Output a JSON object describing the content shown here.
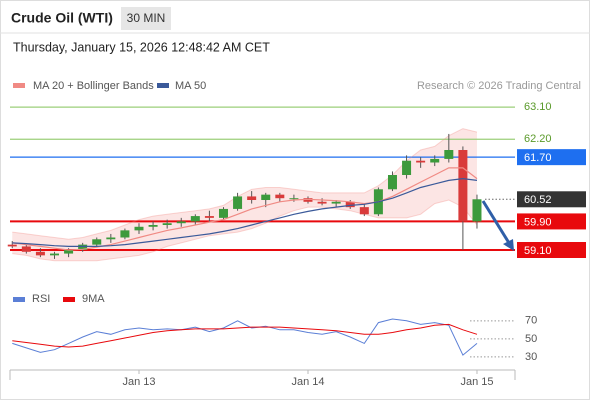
{
  "header": {
    "title": "Crude Oil (WTI)",
    "timeframe": "30 MIN",
    "datetime": "Thursday, January 15, 2026 12:48:42 AM CET",
    "credit": "Research © 2026 Trading Central"
  },
  "chart_data": [
    {
      "type": "candlestick",
      "x": [
        0,
        1,
        2,
        3,
        4,
        5,
        6,
        7,
        8,
        9,
        10,
        11,
        12,
        13,
        14,
        15,
        16,
        17,
        18,
        19,
        20,
        21,
        22,
        23,
        24,
        25,
        26,
        27,
        28,
        29,
        30,
        31,
        32,
        33
      ],
      "open": [
        59.25,
        59.2,
        59.05,
        58.95,
        59.0,
        59.1,
        59.25,
        59.4,
        59.45,
        59.65,
        59.75,
        59.8,
        59.85,
        59.9,
        60.05,
        60.0,
        60.25,
        60.6,
        60.5,
        60.65,
        60.55,
        60.55,
        60.45,
        60.4,
        60.45,
        60.3,
        60.1,
        60.8,
        61.2,
        61.6,
        61.55,
        61.65,
        61.9,
        59.9
      ],
      "high": [
        59.35,
        59.25,
        59.15,
        59.05,
        59.15,
        59.3,
        59.45,
        59.55,
        59.7,
        59.85,
        59.9,
        59.95,
        60.0,
        60.1,
        60.2,
        60.3,
        60.7,
        60.75,
        60.7,
        60.7,
        60.65,
        60.6,
        60.55,
        60.5,
        60.5,
        60.4,
        60.85,
        61.3,
        61.75,
        61.7,
        61.75,
        62.35,
        62.0,
        60.65
      ],
      "low": [
        59.15,
        59.0,
        58.9,
        58.85,
        58.9,
        59.05,
        59.2,
        59.3,
        59.4,
        59.55,
        59.65,
        59.7,
        59.75,
        59.8,
        59.9,
        59.95,
        60.2,
        60.4,
        60.3,
        60.45,
        60.45,
        60.4,
        60.35,
        60.3,
        60.25,
        60.05,
        60.05,
        60.75,
        61.1,
        61.4,
        61.45,
        61.55,
        59.1,
        59.7
      ],
      "close": [
        59.2,
        59.05,
        58.95,
        59.0,
        59.1,
        59.25,
        59.4,
        59.45,
        59.65,
        59.75,
        59.8,
        59.85,
        59.9,
        60.05,
        60.0,
        60.25,
        60.6,
        60.5,
        60.65,
        60.55,
        60.55,
        60.45,
        60.4,
        60.45,
        60.3,
        60.1,
        60.8,
        61.2,
        61.6,
        61.55,
        61.65,
        61.9,
        59.9,
        60.52
      ],
      "up_color": "#3c9a3c",
      "down_color": "#d93a3a",
      "series": [
        {
          "name": "MA 20 + Bollinger Bands",
          "color": "#f08a84",
          "values": [
            59.3,
            59.25,
            59.2,
            59.15,
            59.1,
            59.12,
            59.18,
            59.25,
            59.35,
            59.45,
            59.55,
            59.65,
            59.72,
            59.8,
            59.88,
            59.95,
            60.1,
            60.25,
            60.35,
            60.45,
            60.5,
            60.52,
            60.5,
            60.48,
            60.45,
            60.4,
            60.45,
            60.6,
            60.8,
            61.0,
            61.2,
            61.4,
            61.4,
            61.1
          ],
          "upper": [
            59.6,
            59.55,
            59.5,
            59.45,
            59.4,
            59.45,
            59.55,
            59.65,
            59.8,
            59.95,
            60.05,
            60.1,
            60.15,
            60.2,
            60.25,
            60.35,
            60.6,
            60.8,
            60.85,
            60.85,
            60.8,
            60.75,
            60.7,
            60.7,
            60.7,
            60.7,
            60.9,
            61.2,
            61.6,
            61.9,
            62.0,
            62.3,
            62.5,
            62.4
          ],
          "lower": [
            59.0,
            58.95,
            58.85,
            58.8,
            58.8,
            58.8,
            58.8,
            58.85,
            58.9,
            58.95,
            59.05,
            59.2,
            59.3,
            59.4,
            59.5,
            59.55,
            59.6,
            59.7,
            59.85,
            60.05,
            60.2,
            60.3,
            60.3,
            60.25,
            60.2,
            60.1,
            60.0,
            60.0,
            60.0,
            60.1,
            60.4,
            60.5,
            60.3,
            59.8
          ]
        },
        {
          "name": "MA 50",
          "color": "#3b5a9a",
          "values": [
            59.3,
            59.28,
            59.25,
            59.22,
            59.2,
            59.2,
            59.2,
            59.22,
            59.25,
            59.3,
            59.35,
            59.4,
            59.45,
            59.5,
            59.55,
            59.62,
            59.7,
            59.8,
            59.9,
            60.0,
            60.1,
            60.18,
            60.25,
            60.3,
            60.35,
            60.38,
            60.45,
            60.55,
            60.7,
            60.85,
            60.95,
            61.05,
            61.1,
            61.05
          ]
        }
      ],
      "levels": [
        {
          "value": 63.1,
          "label": "63.10",
          "color": "#9ccf7a",
          "style": "text"
        },
        {
          "value": 62.2,
          "label": "62.20",
          "color": "#9ccf7a",
          "style": "text"
        },
        {
          "value": 61.7,
          "label": "61.70",
          "color": "#1e6ff0",
          "style": "box"
        },
        {
          "value": 60.52,
          "color": "#333333",
          "style": "current"
        },
        {
          "value": 59.9,
          "label": "59.90",
          "color": "#e8090d",
          "style": "box"
        },
        {
          "value": 59.1,
          "label": "59.10",
          "color": "#e8090d",
          "style": "box"
        }
      ],
      "xlim": [
        -0.16,
        35.7
      ],
      "ylim": [
        58.26,
        63.44
      ]
    },
    {
      "type": "line",
      "x": [
        0,
        1,
        2,
        3,
        4,
        5,
        6,
        7,
        8,
        9,
        10,
        11,
        12,
        13,
        14,
        15,
        16,
        17,
        18,
        19,
        20,
        21,
        22,
        23,
        24,
        25,
        26,
        27,
        28,
        29,
        30,
        31,
        32,
        33
      ],
      "series": [
        {
          "name": "RSI",
          "color": "#5b7fd6",
          "values": [
            45,
            40,
            35,
            38,
            45,
            52,
            58,
            55,
            60,
            62,
            60,
            61,
            60,
            63,
            58,
            62,
            70,
            62,
            64,
            60,
            60,
            57,
            55,
            58,
            52,
            45,
            68,
            72,
            70,
            66,
            68,
            65,
            32,
            45
          ]
        },
        {
          "name": "9MA",
          "color": "#e8090d",
          "values": [
            48,
            46,
            44,
            42,
            41,
            42,
            45,
            48,
            51,
            54,
            57,
            59,
            60,
            61,
            61,
            61,
            62,
            63,
            63,
            63,
            62,
            61,
            60,
            59,
            57,
            55,
            55,
            57,
            60,
            62,
            65,
            66,
            60,
            55
          ]
        }
      ],
      "xlim": [
        -0.16,
        35.7
      ],
      "ylim": [
        21,
        82
      ],
      "yticks": [
        70,
        50,
        30
      ],
      "xticks": [
        {
          "value": 9,
          "label": "Jan 13"
        },
        {
          "value": 21,
          "label": "Jan 14"
        },
        {
          "value": 33,
          "label": "Jan 15"
        }
      ]
    }
  ]
}
